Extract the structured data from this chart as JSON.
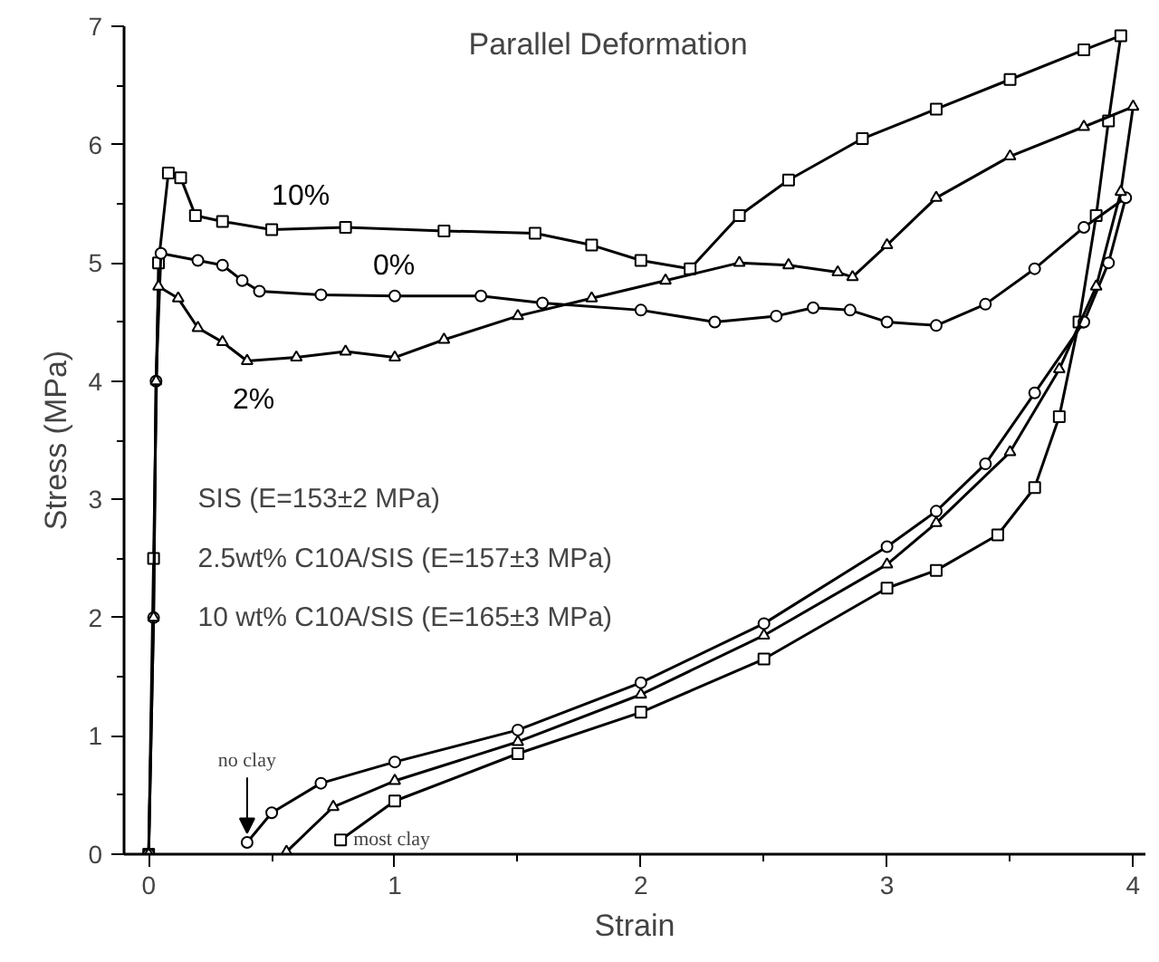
{
  "chart_data": {
    "type": "line",
    "title": "Parallel Deformation",
    "xlabel": "Strain",
    "ylabel": "Stress (MPa)",
    "xlim": [
      -0.1,
      4.05
    ],
    "ylim": [
      0,
      7
    ],
    "xticks": [
      0,
      {
        "value": 0.5,
        "label": null
      },
      1,
      {
        "value": 1.5,
        "label": null
      },
      2,
      {
        "value": 2.5,
        "label": null
      },
      3,
      {
        "value": 3.5,
        "label": null
      },
      4
    ],
    "yticks": [
      0,
      {
        "value": 0.5,
        "label": null
      },
      1,
      {
        "value": 1.5,
        "label": null
      },
      2,
      {
        "value": 2.5,
        "label": null
      },
      3,
      {
        "value": 3.5,
        "label": null
      },
      4,
      {
        "value": 4.5,
        "label": null
      },
      5,
      {
        "value": 5.5,
        "label": null
      },
      6,
      {
        "value": 6.5,
        "label": null
      },
      7
    ],
    "grid": false,
    "legend": false,
    "line_style": "solid",
    "series": [
      {
        "name": "10%",
        "color": "#000000",
        "marker": "square",
        "x": [
          0,
          0.02,
          0.04,
          0.08,
          0.13,
          0.19,
          0.3,
          0.5,
          0.8,
          1.2,
          1.57,
          1.8,
          2.0,
          2.2,
          2.4,
          2.6,
          2.9,
          3.2,
          3.5,
          3.8,
          3.95,
          3.9,
          3.85,
          3.78,
          3.7,
          3.6,
          3.45,
          3.2,
          3.0,
          2.5,
          2.0,
          1.5,
          1.0,
          0.78
        ],
        "values": [
          0,
          2.5,
          5,
          5.76,
          5.72,
          5.4,
          5.35,
          5.28,
          5.3,
          5.27,
          5.25,
          5.15,
          5.02,
          4.95,
          5.4,
          5.7,
          6.05,
          6.3,
          6.55,
          6.8,
          6.92,
          6.2,
          5.4,
          4.5,
          3.7,
          3.1,
          2.7,
          2.4,
          2.25,
          1.65,
          1.2,
          0.85,
          0.45,
          0.12
        ]
      },
      {
        "name": "0%",
        "color": "#000000",
        "marker": "circle",
        "x": [
          0,
          0.02,
          0.03,
          0.05,
          0.2,
          0.3,
          0.38,
          0.45,
          0.7,
          1.0,
          1.35,
          1.6,
          2.0,
          2.3,
          2.55,
          2.7,
          2.85,
          3.0,
          3.2,
          3.4,
          3.6,
          3.8,
          3.97,
          3.9,
          3.8,
          3.6,
          3.4,
          3.2,
          3.0,
          2.5,
          2.0,
          1.5,
          1.0,
          0.7,
          0.5,
          0.4
        ],
        "values": [
          0,
          2,
          4,
          5.08,
          5.02,
          4.98,
          4.85,
          4.76,
          4.73,
          4.72,
          4.72,
          4.66,
          4.6,
          4.5,
          4.55,
          4.62,
          4.6,
          4.5,
          4.47,
          4.65,
          4.95,
          5.3,
          5.55,
          5.0,
          4.5,
          3.9,
          3.3,
          2.9,
          2.6,
          1.95,
          1.45,
          1.05,
          0.78,
          0.6,
          0.35,
          0.1
        ]
      },
      {
        "name": "2%",
        "color": "#000000",
        "marker": "triangle",
        "x": [
          0,
          0.02,
          0.03,
          0.04,
          0.12,
          0.2,
          0.3,
          0.4,
          0.6,
          0.8,
          1.0,
          1.2,
          1.5,
          1.8,
          2.1,
          2.4,
          2.6,
          2.8,
          2.86,
          3.0,
          3.2,
          3.5,
          3.8,
          4.0,
          3.95,
          3.85,
          3.7,
          3.5,
          3.2,
          3.0,
          2.5,
          2.0,
          1.5,
          1.0,
          0.75,
          0.56
        ],
        "values": [
          0,
          2,
          4,
          4.8,
          4.7,
          4.45,
          4.33,
          4.17,
          4.2,
          4.25,
          4.2,
          4.35,
          4.55,
          4.7,
          4.85,
          5.0,
          4.98,
          4.92,
          4.88,
          5.15,
          5.55,
          5.9,
          6.15,
          6.32,
          5.6,
          4.8,
          4.1,
          3.4,
          2.8,
          2.45,
          1.85,
          1.35,
          0.95,
          0.62,
          0.4,
          0.02
        ]
      }
    ],
    "annotations": [
      "SIS (E=153±2 MPa)",
      "2.5wt% C10A/SIS (E=157±3 MPa)",
      "10 wt% C10A/SIS (E=165±3 MPa)",
      {
        "text": "no clay",
        "x": 0.4,
        "y": 0.1
      },
      {
        "text": "most clay",
        "x": 0.78,
        "y": 0.12
      }
    ]
  }
}
